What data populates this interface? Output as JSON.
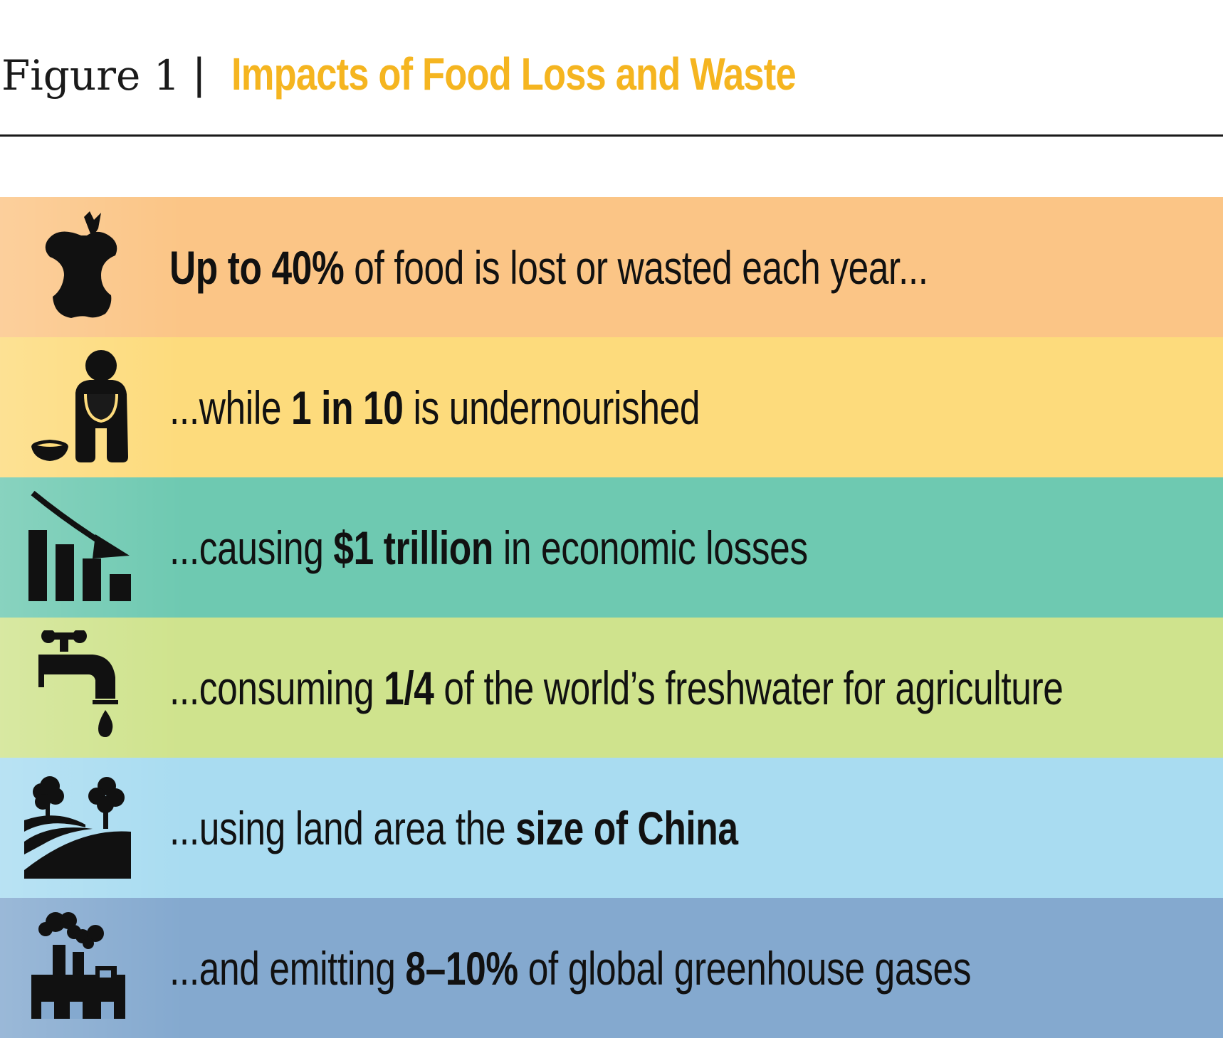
{
  "header": {
    "figure_label": "Figure 1",
    "separator": "|",
    "title": "Impacts of Food Loss and Waste"
  },
  "rows": [
    {
      "icon": "apple-core-icon",
      "color": "#fbc586",
      "pre": "",
      "bold": "Up to 40%",
      "post": " of food is lost or wasted each year..."
    },
    {
      "icon": "undernourished-person-icon",
      "color": "#fddb7c",
      "pre": "...while ",
      "bold": "1 in 10",
      "post": " is undernourished"
    },
    {
      "icon": "declining-chart-icon",
      "color": "#6ec9b1",
      "pre": "...causing ",
      "bold": "$1 trillion",
      "post": " in economic losses"
    },
    {
      "icon": "water-tap-icon",
      "color": "#cfe38d",
      "pre": "...consuming ",
      "bold": "1/4",
      "post": " of the world’s freshwater for agriculture"
    },
    {
      "icon": "land-trees-icon",
      "color": "#a9dcf1",
      "pre": "...using land area the ",
      "bold": "size of China",
      "post": ""
    },
    {
      "icon": "factory-emissions-icon",
      "color": "#84a9cf",
      "pre": "...and emitting ",
      "bold": "8–10%",
      "post": " of global greenhouse gases"
    }
  ]
}
